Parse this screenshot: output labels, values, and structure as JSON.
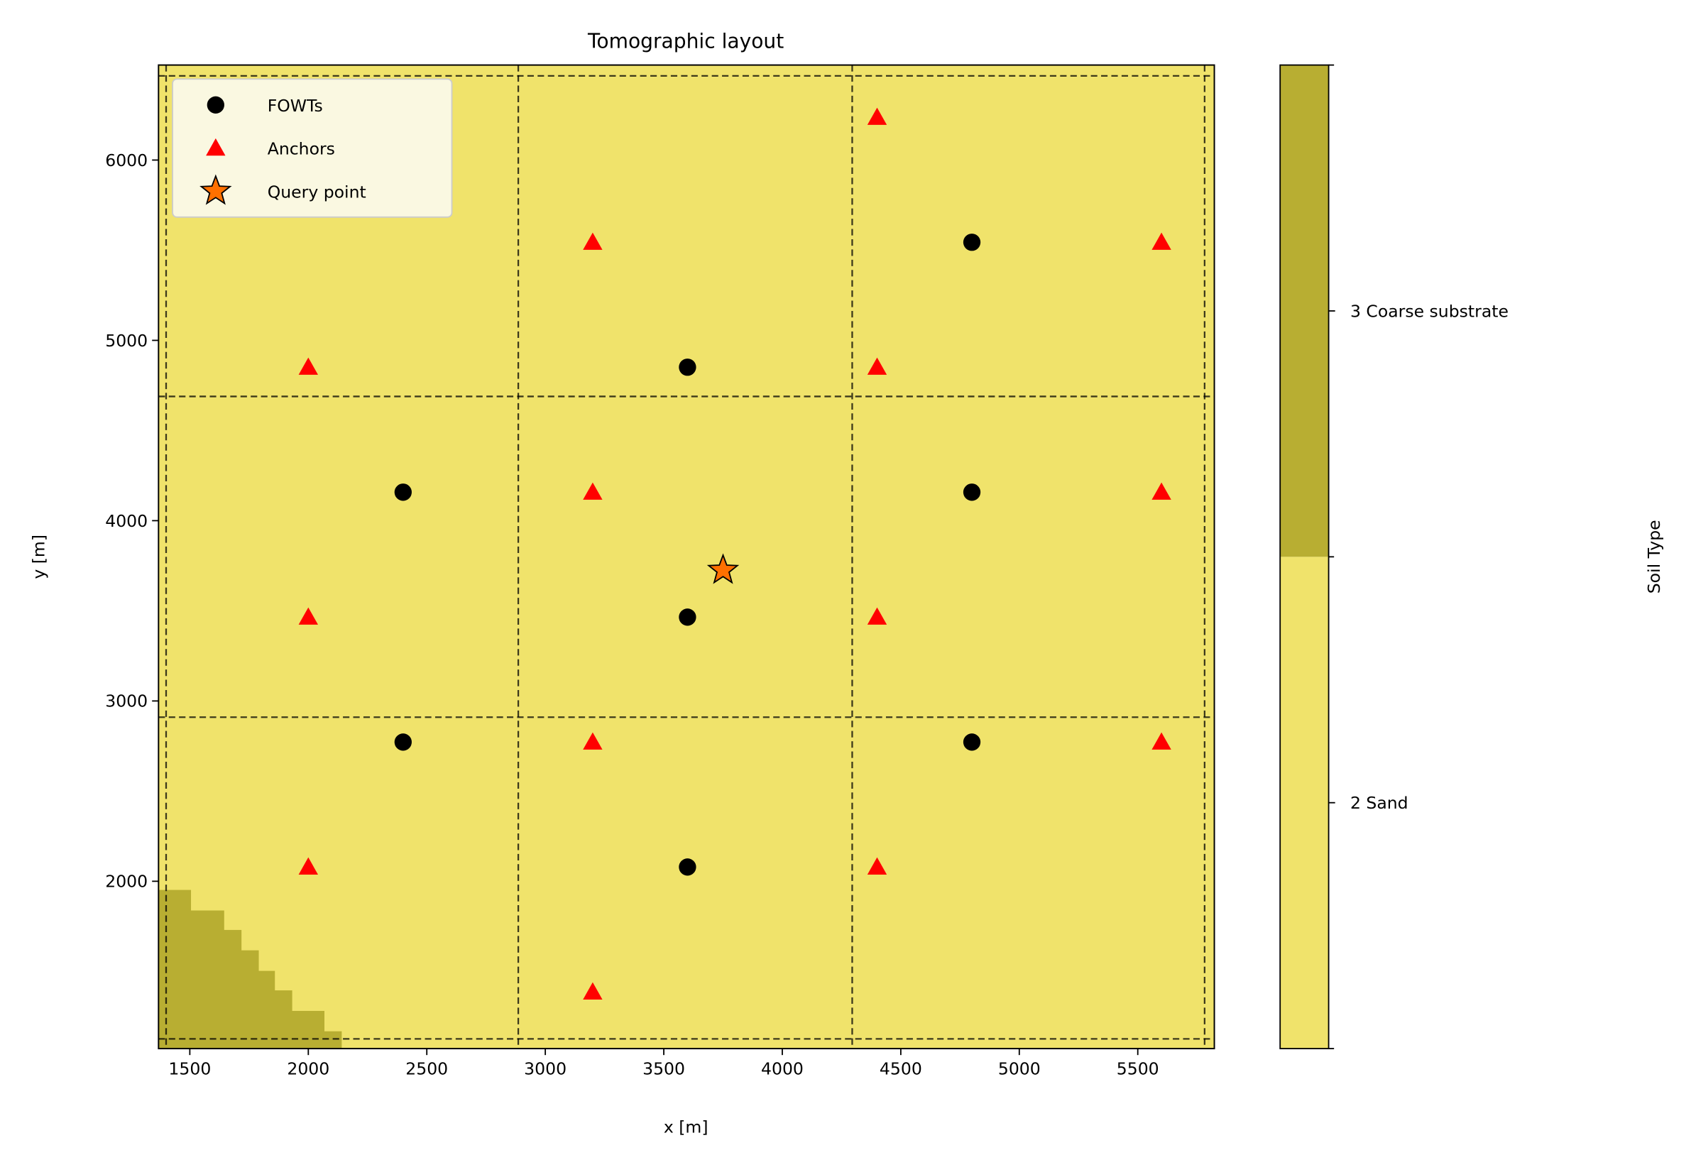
{
  "chart_data": {
    "type": "scatter",
    "title": "Tomographic layout",
    "xlabel": "x [m]",
    "ylabel": "y [m]",
    "xlim": [
      1368,
      5823
    ],
    "ylim": [
      1072,
      6527
    ],
    "xticks": [
      1500,
      2000,
      2500,
      3000,
      3500,
      4000,
      4500,
      5000,
      5500
    ],
    "yticks": [
      2000,
      3000,
      4000,
      5000,
      6000
    ],
    "grid": false,
    "legend_position": "top-left",
    "background_map": {
      "name": "Soil Type",
      "categories": [
        {
          "value": 2,
          "label": "2 Sand",
          "color": "#f0e36b"
        },
        {
          "value": 3,
          "label": "3 Coarse substrate",
          "color": "#b8ae32"
        }
      ],
      "coarse_region_steps": [
        {
          "y_from": 1838,
          "y_to": 1952,
          "x_to": 1505
        },
        {
          "y_from": 1730,
          "y_to": 1838,
          "x_to": 1645
        },
        {
          "y_from": 1617,
          "y_to": 1730,
          "x_to": 1718
        },
        {
          "y_from": 1503,
          "y_to": 1617,
          "x_to": 1791
        },
        {
          "y_from": 1395,
          "y_to": 1503,
          "x_to": 1859
        },
        {
          "y_from": 1281,
          "y_to": 1395,
          "x_to": 1932
        },
        {
          "y_from": 1168,
          "y_to": 1281,
          "x_to": 2068
        },
        {
          "y_from": 1072,
          "y_to": 1168,
          "x_to": 2141
        }
      ]
    },
    "cell_lines": {
      "x": [
        1400,
        2886,
        4295,
        5782
      ],
      "y": [
        1126,
        2910,
        4689,
        6467
      ]
    },
    "series": [
      {
        "name": "FOWTs",
        "marker": "circle",
        "color": "#000000",
        "points": [
          [
            2400,
            4158
          ],
          [
            2400,
            2772
          ],
          [
            3600,
            4851
          ],
          [
            3600,
            3465
          ],
          [
            3600,
            2079
          ],
          [
            4800,
            5544
          ],
          [
            4800,
            4158
          ],
          [
            4800,
            2772
          ]
        ]
      },
      {
        "name": "Anchors",
        "marker": "triangle",
        "color": "#ff0000",
        "points": [
          [
            2000,
            4851
          ],
          [
            2000,
            3465
          ],
          [
            2000,
            2079
          ],
          [
            3200,
            5544
          ],
          [
            3200,
            4158
          ],
          [
            3200,
            2772
          ],
          [
            3200,
            1386
          ],
          [
            4400,
            6237
          ],
          [
            4400,
            4851
          ],
          [
            4400,
            3465
          ],
          [
            4400,
            2079
          ],
          [
            5600,
            5544
          ],
          [
            5600,
            4158
          ],
          [
            5600,
            2772
          ]
        ]
      },
      {
        "name": "Query point",
        "marker": "star",
        "color": "#ff7000",
        "points": [
          [
            3750,
            3725
          ]
        ]
      }
    ]
  }
}
